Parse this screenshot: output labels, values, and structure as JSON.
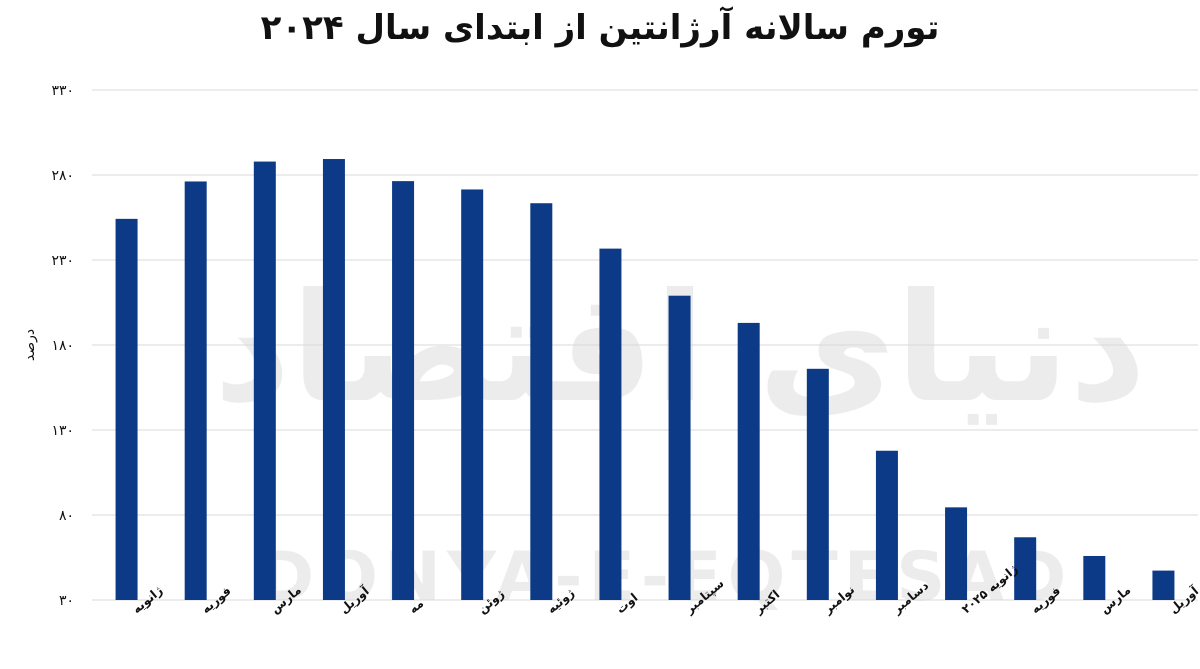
{
  "title": "تورم سالانه آرژانتین از ابتدای سال ۲۰۲۴",
  "watermark": {
    "text": "DONYA-E-EQTESAD",
    "logo_text": "دنیای اقتصاد"
  },
  "colors": {
    "bar": "#0D3A87",
    "grid": "#d9d9d9",
    "text": "#111111"
  },
  "chart_data": {
    "type": "bar",
    "title": "تورم سالانه آرژانتین از ابتدای سال ۲۰۲۴",
    "ylabel": "درصد",
    "xlabel": "",
    "ylim": [
      30,
      330
    ],
    "yticks": [
      30,
      80,
      130,
      180,
      230,
      280,
      330
    ],
    "ytick_labels": [
      "۳۰",
      "۸۰",
      "۱۳۰",
      "۱۸۰",
      "۲۳۰",
      "۲۸۰",
      "۳۳۰"
    ],
    "grid": true,
    "legend": "none",
    "categories": [
      "ژانویه",
      "فوریه",
      "مارس",
      "آوریل",
      "مه",
      "ژوئن",
      "ژوئیه",
      "اوت",
      "سپتامبر",
      "اکتبر",
      "نوامبر",
      "دسامبر",
      "ژانویه ۲۰۲۵",
      "فوریه",
      "مارس",
      "آوریل"
    ],
    "values": [
      254.2,
      276.2,
      287.9,
      289.4,
      276.4,
      271.5,
      263.4,
      236.7,
      209.0,
      193.0,
      166.0,
      117.8,
      84.5,
      66.9,
      55.9,
      47.3
    ]
  }
}
